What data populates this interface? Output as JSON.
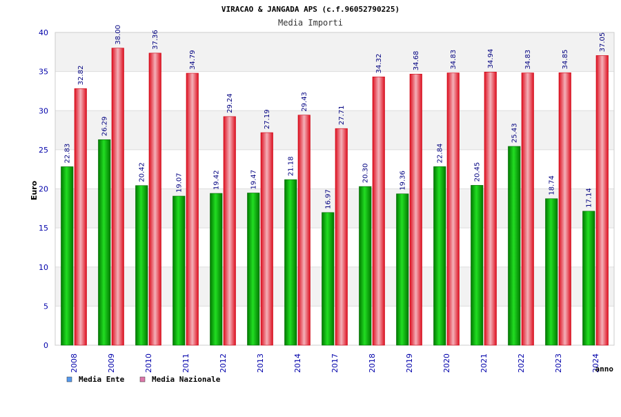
{
  "chart_data": {
    "type": "bar",
    "title": "VIRACAO & JANGADA APS (c.f.96052790225)",
    "subtitle": "Media Importi",
    "xlabel": "anno",
    "ylabel": "Euro",
    "ylim": [
      0,
      40
    ],
    "yticks": [
      0,
      5,
      10,
      15,
      20,
      25,
      30,
      35,
      40
    ],
    "grid": true,
    "legend_position": "bottom-left",
    "categories": [
      "2008",
      "2009",
      "2010",
      "2011",
      "2012",
      "2013",
      "2014",
      "2017",
      "2018",
      "2019",
      "2020",
      "2021",
      "2022",
      "2023",
      "2024"
    ],
    "series": [
      {
        "name": "Media Ente",
        "color": "#00aa00",
        "legend_color": "#5599ee",
        "values": [
          22.83,
          26.29,
          20.42,
          19.07,
          19.42,
          19.47,
          21.18,
          16.97,
          20.3,
          19.36,
          22.84,
          20.45,
          25.43,
          18.74,
          17.14
        ],
        "labels": [
          "22.83",
          "26.29",
          "20.42",
          "19.07",
          "19.42",
          "19.47",
          "21.18",
          "16.97",
          "20.30",
          "19.36",
          "22.84",
          "20.45",
          "25.43",
          "18.74",
          "17.14"
        ]
      },
      {
        "name": "Media Nazionale",
        "color": "#ee1122",
        "legend_color": "#dd77aa",
        "values": [
          32.82,
          38.0,
          37.36,
          34.79,
          29.24,
          27.19,
          29.43,
          27.71,
          34.32,
          34.68,
          34.83,
          34.94,
          34.83,
          34.85,
          37.05
        ],
        "labels": [
          "32.82",
          "38.00",
          "37.36",
          "34.79",
          "29.24",
          "27.19",
          "29.43",
          "27.71",
          "34.32",
          "34.68",
          "34.83",
          "34.94",
          "34.83",
          "34.85",
          "37.05"
        ]
      }
    ]
  }
}
